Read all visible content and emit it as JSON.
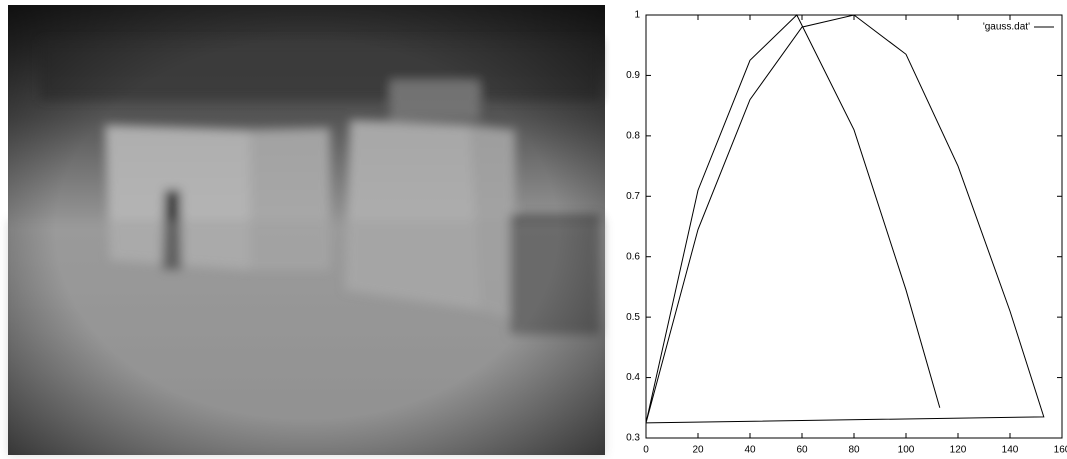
{
  "chart_data": {
    "type": "line",
    "series": [
      {
        "name": "'gauss.dat'",
        "color": "#000000",
        "x": [
          113,
          100,
          80,
          58,
          40,
          20,
          0,
          20,
          40,
          60,
          80,
          100,
          120,
          140,
          153,
          0
        ],
        "values": [
          0.35,
          0.545,
          0.81,
          1,
          0.925,
          0.71,
          0.325,
          0.645,
          0.86,
          0.98,
          1,
          0.935,
          0.75,
          0.51,
          0.335,
          0.325
        ]
      }
    ],
    "xlim": [
      0,
      160
    ],
    "xticks": [
      0,
      20,
      40,
      60,
      80,
      100,
      120,
      140,
      160
    ],
    "ylim": [
      0.3,
      1
    ],
    "yticks": [
      0.3,
      0.4,
      0.5,
      0.6,
      0.7,
      0.8,
      0.9,
      1
    ],
    "legend": "top-right"
  }
}
